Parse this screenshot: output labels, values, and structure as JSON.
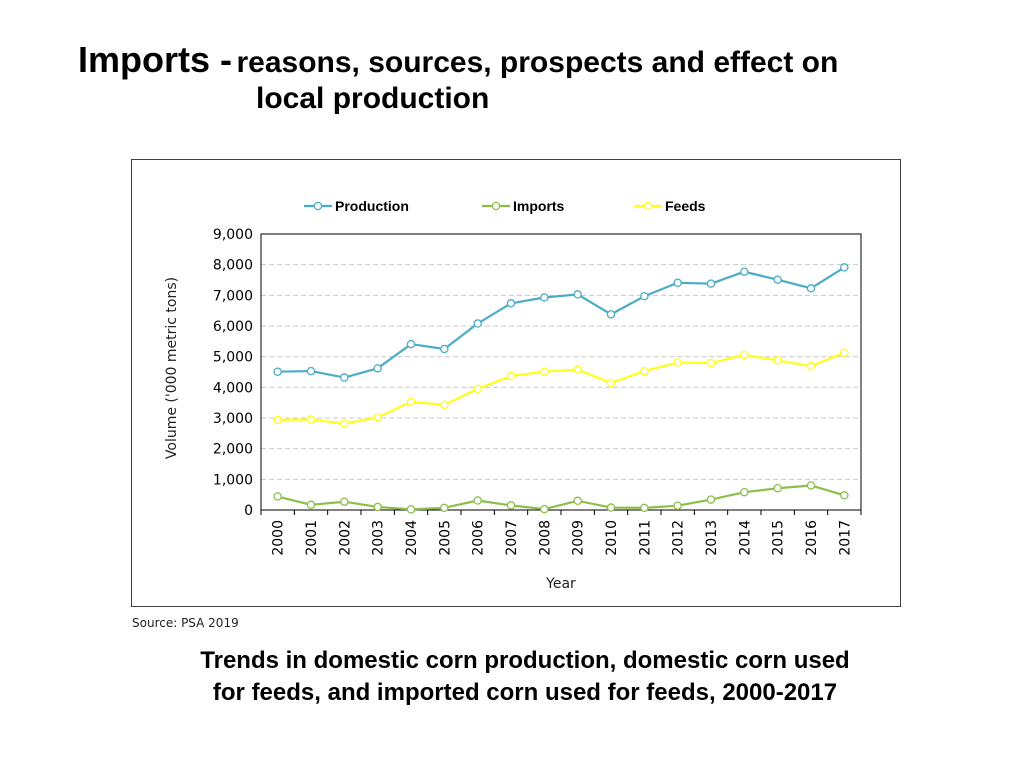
{
  "slide": {
    "title_main": "Imports -",
    "title_sub_line1": "reasons, sources, prospects and effect on",
    "title_sub_line2": "local production",
    "source": "Source: PSA 2019",
    "caption_line1": "Trends in domestic corn production, domestic corn used",
    "caption_line2": "for feeds, and imported corn used for feeds, 2000-2017"
  },
  "chart_data": {
    "type": "line",
    "title": "",
    "xlabel": "Year",
    "ylabel": "Volume ('000 metric tons)",
    "ylim": [
      0,
      9000
    ],
    "yticks": [
      "0",
      "1,000",
      "2,000",
      "3,000",
      "4,000",
      "5,000",
      "6,000",
      "7,000",
      "8,000",
      "9,000"
    ],
    "grid": true,
    "legend_position": "top",
    "categories": [
      "2000",
      "2001",
      "2002",
      "2003",
      "2004",
      "2005",
      "2006",
      "2007",
      "2008",
      "2009",
      "2010",
      "2011",
      "2012",
      "2013",
      "2014",
      "2015",
      "2016",
      "2017"
    ],
    "series": [
      {
        "name": "Production",
        "color": "#4bacc6",
        "values": [
          4510,
          4530,
          4320,
          4620,
          5410,
          5250,
          6080,
          6740,
          6930,
          7030,
          6380,
          6970,
          7410,
          7380,
          7770,
          7510,
          7230,
          7910
        ]
      },
      {
        "name": "Imports",
        "color": "#8cbf4a",
        "values": [
          440,
          170,
          270,
          100,
          20,
          70,
          310,
          150,
          30,
          300,
          80,
          70,
          140,
          340,
          580,
          710,
          800,
          480
        ]
      },
      {
        "name": "Feeds",
        "color": "#ffff1a",
        "values": [
          2940,
          2950,
          2820,
          3020,
          3530,
          3430,
          3950,
          4370,
          4510,
          4580,
          4140,
          4530,
          4810,
          4790,
          5060,
          4880,
          4690,
          5130
        ]
      }
    ]
  }
}
